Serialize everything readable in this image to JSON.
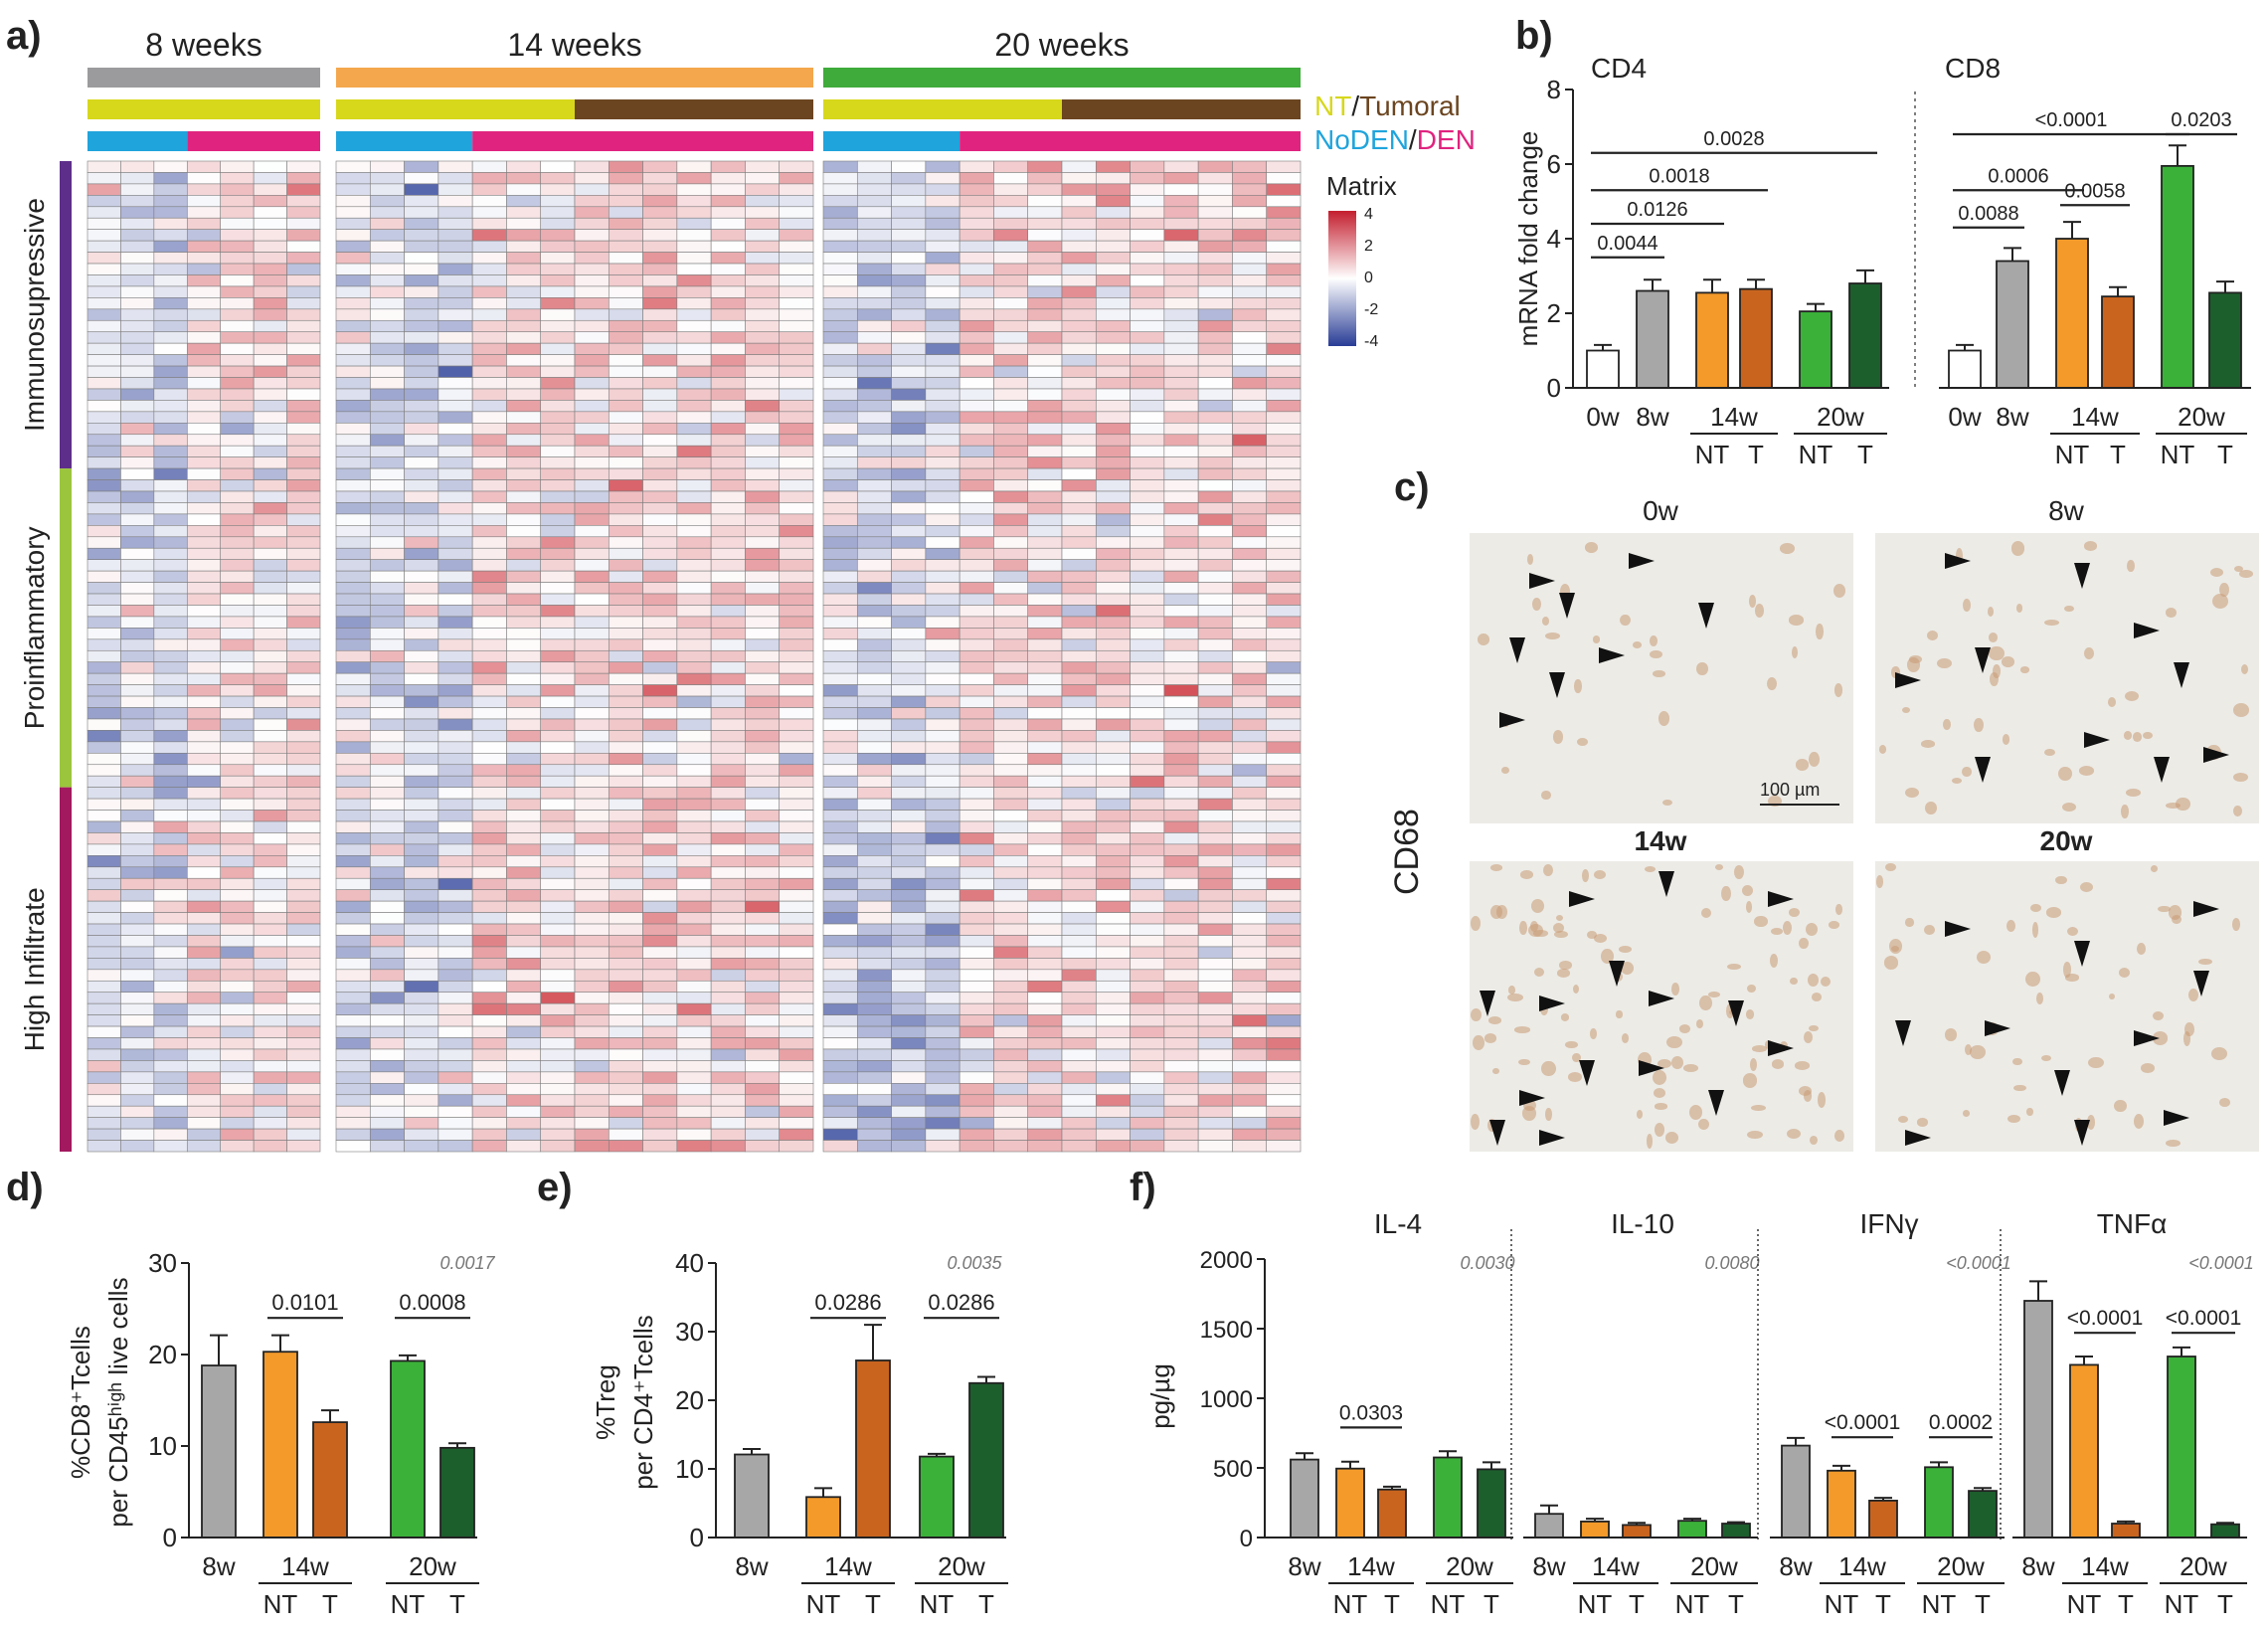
{
  "panels": {
    "a": "a)",
    "b": "b)",
    "c": "c)",
    "d": "d)",
    "e": "e)",
    "f": "f)"
  },
  "colors": {
    "gray": "#9b9b9d",
    "orange_light": "#f4a74c",
    "orange_dark": "#c9641f",
    "green_light": "#3eab3a",
    "green_dark": "#1d5e2d",
    "bar_8w": "#a7a7a7",
    "bar_14w": "#f39a2b",
    "bar_20w": "#3bb13a",
    "NT": "#d7d71c",
    "Tumoral": "#6b4520",
    "NoDEN": "#20a4dc",
    "DEN": "#e0237f",
    "Immunosupressive": "#5e2f8a",
    "Proinflammatory": "#9bc53d",
    "High Infiltrate": "#a2195f"
  },
  "heatmap": {
    "groups": [
      {
        "label": "8 weeks",
        "cols": 7
      },
      {
        "label": "14 weeks",
        "cols": 14
      },
      {
        "label": "20 weeks",
        "cols": 14
      }
    ],
    "nt_tumoral": [
      [
        7,
        0
      ],
      [
        7,
        7
      ],
      [
        7,
        7
      ]
    ],
    "noden_den": [
      [
        3,
        4
      ],
      [
        4,
        10
      ],
      [
        4,
        10
      ]
    ],
    "legend_nt": "NT",
    "legend_slash": "/",
    "legend_tumoral": "Tumoral",
    "legend_noden": "NoDEN",
    "legend_den": "DEN",
    "legend_title": "Matrix",
    "scale_ticks": [
      "4",
      "2",
      "0",
      "-2",
      "-4"
    ],
    "row_groups": [
      {
        "label": "Immunosupressive",
        "rows": 27
      },
      {
        "label": "Proinflammatory",
        "rows": 28
      },
      {
        "label": "High Infiltrate",
        "rows": 32
      }
    ]
  },
  "panel_b": {
    "ylabel": "mRNA fold change",
    "yticks": [
      0,
      2,
      4,
      6,
      8
    ],
    "ylim": [
      0,
      8
    ],
    "CD4": {
      "title": "CD4",
      "values": [
        1.0,
        2.6,
        2.55,
        2.65,
        2.05,
        2.8
      ],
      "errors": [
        0.15,
        0.3,
        0.35,
        0.25,
        0.2,
        0.35
      ],
      "brackets": [
        {
          "label": "0.0044",
          "from": 0,
          "to": 1,
          "y": 3.5
        },
        {
          "label": "0.0126",
          "from": 0,
          "to": 2,
          "y": 4.4
        },
        {
          "label": "0.0018",
          "from": 0,
          "to": 3,
          "y": 5.3
        },
        {
          "label": "0.0028",
          "from": 0,
          "to": 5,
          "y": 6.3
        }
      ]
    },
    "CD8": {
      "title": "CD8",
      "values": [
        1.0,
        3.4,
        4.0,
        2.45,
        5.95,
        2.55
      ],
      "errors": [
        0.15,
        0.35,
        0.45,
        0.25,
        0.55,
        0.3
      ],
      "brackets": [
        {
          "label": "0.0088",
          "from": 0,
          "to": 1,
          "y": 4.3
        },
        {
          "label": "0.0006",
          "from": 0,
          "to": 2,
          "y": 5.3
        },
        {
          "label": "0.0058",
          "from": 2,
          "to": 3,
          "y": 4.9
        },
        {
          "label": "<0.0001",
          "from": 0,
          "to": 4,
          "y": 6.8
        },
        {
          "label": "0.0203",
          "from": 4,
          "to": 5,
          "y": 6.8
        }
      ]
    },
    "xlabels": [
      "0w",
      "8w",
      "14w",
      "20w"
    ],
    "sublabels": [
      "NT",
      "T"
    ]
  },
  "panel_c": {
    "stain": "CD68",
    "images": [
      "0w",
      "8w",
      "14w",
      "20w"
    ],
    "scalebar": "100 µm"
  },
  "panel_d": {
    "ylabel1": "%CD8⁺Tcells",
    "ylabel2": "per CD45ʰⁱᵍʰ live cells",
    "yticks": [
      0,
      10,
      20,
      30
    ],
    "ylim": [
      0,
      30
    ],
    "values": [
      18.8,
      20.3,
      12.6,
      19.3,
      9.8
    ],
    "errors": [
      3.3,
      1.8,
      1.3,
      0.6,
      0.5
    ],
    "overall_p": "0.0017",
    "brackets": [
      {
        "label": "0.0101",
        "from": 1,
        "to": 2,
        "y": 24
      },
      {
        "label": "0.0008",
        "from": 3,
        "to": 4,
        "y": 24
      }
    ]
  },
  "panel_e": {
    "ylabel1": "%Treg",
    "ylabel2": "per CD4⁺Tcells",
    "yticks": [
      0,
      10,
      20,
      30,
      40
    ],
    "ylim": [
      0,
      40
    ],
    "values": [
      12.1,
      5.9,
      25.8,
      11.8,
      22.5
    ],
    "errors": [
      0.8,
      1.3,
      5.2,
      0.4,
      0.9
    ],
    "overall_p": "0.0035",
    "brackets": [
      {
        "label": "0.0286",
        "from": 1,
        "to": 2,
        "y": 32
      },
      {
        "label": "0.0286",
        "from": 3,
        "to": 4,
        "y": 32
      }
    ]
  },
  "panel_f": {
    "ylabel": "pg/µg",
    "yticks": [
      0,
      500,
      1000,
      1500,
      2000
    ],
    "ylim": [
      0,
      2000
    ],
    "cytokines": [
      {
        "title": "IL-4",
        "values": [
          560,
          495,
          345,
          575,
          490
        ],
        "errors": [
          45,
          50,
          20,
          45,
          50
        ],
        "overall_p": "0.0030",
        "brackets": [
          {
            "label": "0.0303",
            "from": 1,
            "to": 2,
            "y": 790
          }
        ]
      },
      {
        "title": "IL-10",
        "values": [
          170,
          115,
          90,
          120,
          100
        ],
        "errors": [
          60,
          20,
          15,
          15,
          10
        ],
        "overall_p": "0.0080",
        "brackets": []
      },
      {
        "title": "IFNγ",
        "values": [
          660,
          480,
          265,
          505,
          335
        ],
        "errors": [
          55,
          35,
          20,
          35,
          20
        ],
        "overall_p": "<0.0001",
        "brackets": [
          {
            "label": "<0.0001",
            "from": 1,
            "to": 2,
            "y": 720
          },
          {
            "label": "0.0002",
            "from": 3,
            "to": 4,
            "y": 720
          }
        ]
      },
      {
        "title": "TNFα",
        "values": [
          1700,
          1240,
          100,
          1300,
          95
        ],
        "errors": [
          140,
          60,
          15,
          65,
          10
        ],
        "overall_p": "<0.0001",
        "brackets": [
          {
            "label": "<0.0001",
            "from": 1,
            "to": 2,
            "y": 1470
          },
          {
            "label": "<0.0001",
            "from": 3,
            "to": 4,
            "y": 1470
          }
        ]
      }
    ]
  },
  "group_labels": {
    "g8": "8w",
    "g14": "14w",
    "g20": "20w",
    "nt": "NT",
    "t": "T",
    "g0": "0w"
  }
}
